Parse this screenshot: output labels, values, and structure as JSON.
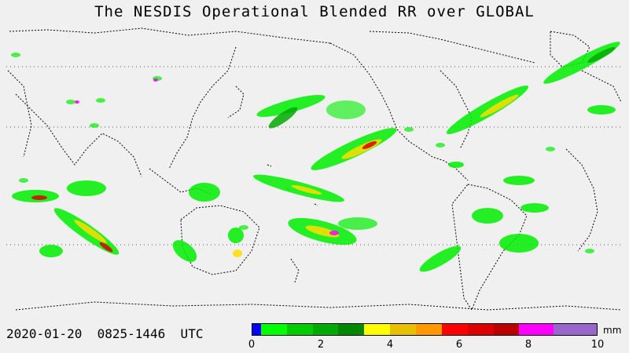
{
  "title": "The NESDIS  Operational  Blended RR over GLOBAL",
  "datetime": "2020-01-20  0825-1446  UTC",
  "legend": {
    "unit": "mm",
    "ticks": [
      "0",
      "2",
      "4",
      "6",
      "8",
      "10"
    ],
    "colors": [
      "#0000ff",
      "#00ff00",
      "#00cc00",
      "#00aa00",
      "#008800",
      "#ffff00",
      "#e8c000",
      "#ff9900",
      "#ff0000",
      "#dd0000",
      "#bb0000",
      "#ff00ff",
      "#9966cc"
    ],
    "bins": [
      0,
      0.25,
      1.0,
      1.75,
      2.5,
      3.25,
      4.0,
      4.75,
      5.5,
      6.25,
      7.0,
      7.75,
      8.75,
      10
    ]
  },
  "rain_colors": {
    "light": "#00ee00",
    "moderate": "#00aa00",
    "heavy": "#ffdd00",
    "very_heavy": "#ff9900",
    "extreme": "#dd0000",
    "peak": "#ff00ff"
  },
  "coastline_color": "#000000",
  "grid_color": "#555555"
}
